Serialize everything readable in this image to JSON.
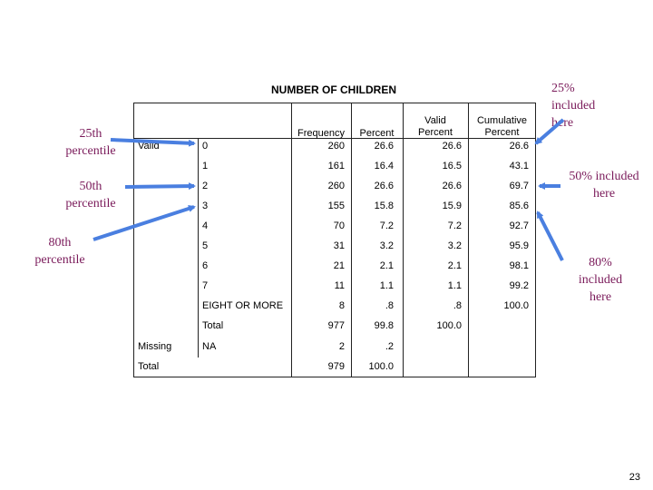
{
  "table": {
    "title": "NUMBER OF CHILDREN",
    "headers": {
      "frequency": "Frequency",
      "percent": "Percent",
      "valid_percent": [
        "Valid",
        "Percent"
      ],
      "cumulative_percent": [
        "Cumulative",
        "Percent"
      ]
    },
    "groups": {
      "valid": "Valid",
      "missing": "Missing",
      "total": "Total"
    },
    "rows": [
      {
        "label": "0",
        "frequency": "260",
        "percent": "26.6",
        "valid": "26.6",
        "cumulative": "26.6"
      },
      {
        "label": "1",
        "frequency": "161",
        "percent": "16.4",
        "valid": "16.5",
        "cumulative": "43.1"
      },
      {
        "label": "2",
        "frequency": "260",
        "percent": "26.6",
        "valid": "26.6",
        "cumulative": "69.7"
      },
      {
        "label": "3",
        "frequency": "155",
        "percent": "15.8",
        "valid": "15.9",
        "cumulative": "85.6"
      },
      {
        "label": "4",
        "frequency": "70",
        "percent": "7.2",
        "valid": "7.2",
        "cumulative": "92.7"
      },
      {
        "label": "5",
        "frequency": "31",
        "percent": "3.2",
        "valid": "3.2",
        "cumulative": "95.9"
      },
      {
        "label": "6",
        "frequency": "21",
        "percent": "2.1",
        "valid": "2.1",
        "cumulative": "98.1"
      },
      {
        "label": "7",
        "frequency": "11",
        "percent": "1.1",
        "valid": "1.1",
        "cumulative": "99.2"
      },
      {
        "label": "EIGHT OR MORE",
        "frequency": "8",
        "percent": ".8",
        "valid": ".8",
        "cumulative": "100.0"
      },
      {
        "label": "Total",
        "frequency": "977",
        "percent": "99.8",
        "valid": "100.0",
        "cumulative": ""
      },
      {
        "label": "NA",
        "frequency": "2",
        "percent": ".2",
        "valid": "",
        "cumulative": ""
      },
      {
        "label": "",
        "frequency": "979",
        "percent": "100.0",
        "valid": "",
        "cumulative": ""
      }
    ]
  },
  "annotations": {
    "left_25": [
      "25th",
      "percentile"
    ],
    "left_50": [
      "50th",
      "percentile"
    ],
    "left_80": [
      "80th",
      "percentile"
    ],
    "right_25": [
      "25%",
      "included",
      "here"
    ],
    "right_50": [
      "50% included",
      "here"
    ],
    "right_80": [
      "80%",
      "included",
      "here"
    ]
  },
  "arrow_color": "#4a7fe0",
  "annotation_color": "#7a1a5a",
  "page_number": "23"
}
